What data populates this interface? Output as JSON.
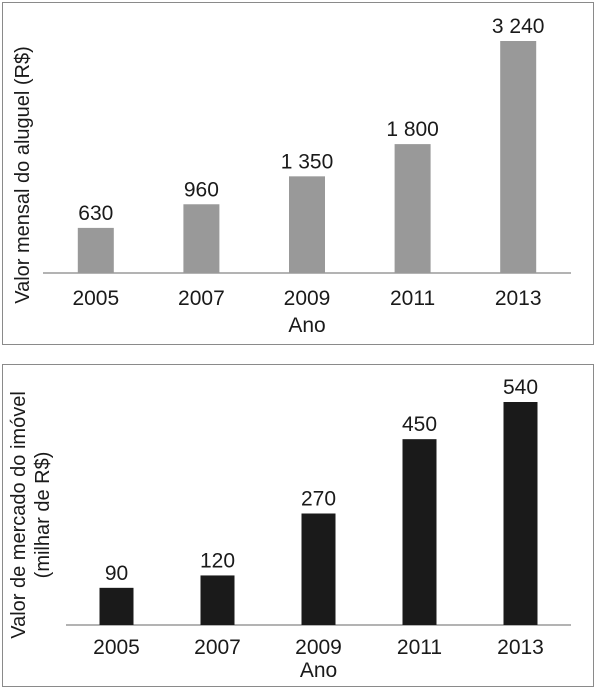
{
  "chart_data": [
    {
      "type": "bar",
      "categories": [
        "2005",
        "2007",
        "2009",
        "2011",
        "2013"
      ],
      "values": [
        630,
        960,
        1350,
        1800,
        3240
      ],
      "value_labels": [
        "630",
        "960",
        "1 350",
        "1 800",
        "3 240"
      ],
      "xlabel": "Ano",
      "ylabel": "Valor mensal do aluguel (R$)",
      "ylim": [
        0,
        3240
      ],
      "grid": false,
      "bar_color": "#999999"
    },
    {
      "type": "bar",
      "categories": [
        "2005",
        "2007",
        "2009",
        "2011",
        "2013"
      ],
      "values": [
        90,
        120,
        270,
        450,
        540
      ],
      "value_labels": [
        "90",
        "120",
        "270",
        "450",
        "540"
      ],
      "xlabel": "Ano",
      "ylabel": "Valor de mercado do imóvel",
      "ylabel_line2": "(milhar de R$)",
      "ylim": [
        0,
        540
      ],
      "grid": false,
      "bar_color": "#1a1a1a"
    }
  ]
}
